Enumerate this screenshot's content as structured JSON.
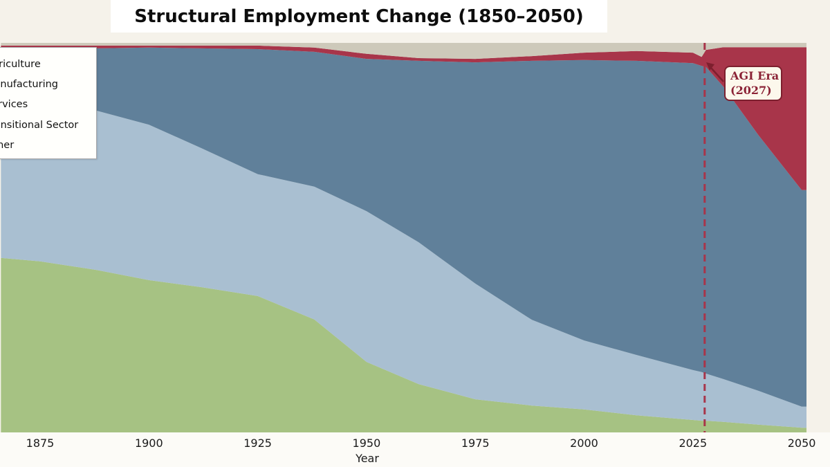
{
  "title": "Structural Employment Change (1850–2050)",
  "x_axis": {
    "label": "Year",
    "ticks": [
      "1875",
      "1900",
      "1925",
      "1950",
      "1975",
      "2000",
      "2025",
      "2050"
    ]
  },
  "legend": {
    "items": [
      {
        "label": "Agriculture",
        "color": "#a6c283"
      },
      {
        "label": "Manufacturing",
        "color": "#a9bfd1"
      },
      {
        "label": "Services",
        "color": "#60809a"
      },
      {
        "label": "Transitional Sector",
        "color": "#a8354a"
      },
      {
        "label": "Other",
        "color": "#cdc9ba"
      }
    ]
  },
  "annotation": {
    "text_line1": "AGI Era",
    "text_line2": "(2027)",
    "line_year": 2027,
    "line_color": "#a8354a",
    "box_border_color": "#7d1f2e",
    "text_color": "#8b2336"
  },
  "chart_data": {
    "type": "area",
    "stacked": true,
    "title": "Structural Employment Change (1850–2050)",
    "xlabel": "Year",
    "ylabel": "",
    "unit": "percent share of total employment",
    "xlim_full": [
      1850,
      2050
    ],
    "xlim_visible": [
      1866,
      2051
    ],
    "ylim": [
      0,
      100
    ],
    "x_ticks": [
      1875,
      1900,
      1925,
      1950,
      1975,
      2000,
      2025,
      2050
    ],
    "x": [
      1866,
      1875,
      1888,
      1900,
      1912,
      1925,
      1938,
      1950,
      1962,
      1975,
      1988,
      2000,
      2012,
      2025,
      2027,
      2028,
      2032,
      2040,
      2050
    ],
    "series": [
      {
        "name": "Agriculture",
        "color": "#a6c283",
        "values": [
          44.8,
          43.9,
          41.7,
          39.1,
          37.3,
          35.0,
          29.0,
          18.1,
          12.4,
          8.5,
          6.9,
          5.9,
          4.4,
          3.2,
          3.0,
          3.0,
          2.7,
          2.0,
          1.2
        ]
      },
      {
        "name": "Manufacturing",
        "color": "#a9bfd1",
        "values": [
          40.5,
          40.5,
          40.9,
          39.9,
          35.7,
          31.3,
          34.1,
          38.7,
          36.4,
          29.7,
          22.0,
          17.7,
          15.5,
          12.8,
          12.5,
          12.1,
          11.0,
          8.7,
          5.4
        ]
      },
      {
        "name": "Services",
        "color": "#60809a",
        "values": [
          13.3,
          14.2,
          16.0,
          19.8,
          25.6,
          32.1,
          34.6,
          39.1,
          46.6,
          56.8,
          66.5,
          72.0,
          75.5,
          78.8,
          78.6,
          78.7,
          75.1,
          65.7,
          55.6
        ]
      },
      {
        "name": "Transitional Sector",
        "color": "#a8354a",
        "values": [
          0.7,
          0.7,
          0.7,
          0.5,
          0.7,
          0.9,
          1.1,
          1.3,
          0.7,
          0.9,
          1.2,
          1.9,
          2.5,
          2.7,
          2.3,
          4.4,
          10.1,
          22.5,
          36.7
        ]
      },
      {
        "name": "Other",
        "color": "#cdc9ba",
        "values": [
          0.7,
          0.7,
          0.7,
          0.7,
          0.7,
          0.7,
          1.2,
          2.8,
          3.9,
          4.1,
          3.4,
          2.5,
          2.1,
          2.5,
          3.6,
          1.8,
          1.1,
          1.1,
          1.1
        ]
      }
    ],
    "annotations": [
      {
        "type": "vline",
        "x": 2027,
        "style": "dashed",
        "color": "#a8354a"
      },
      {
        "type": "label",
        "x": 2033,
        "text": "AGI Era (2027)"
      }
    ],
    "legend_position": "upper-left",
    "grid": false
  }
}
